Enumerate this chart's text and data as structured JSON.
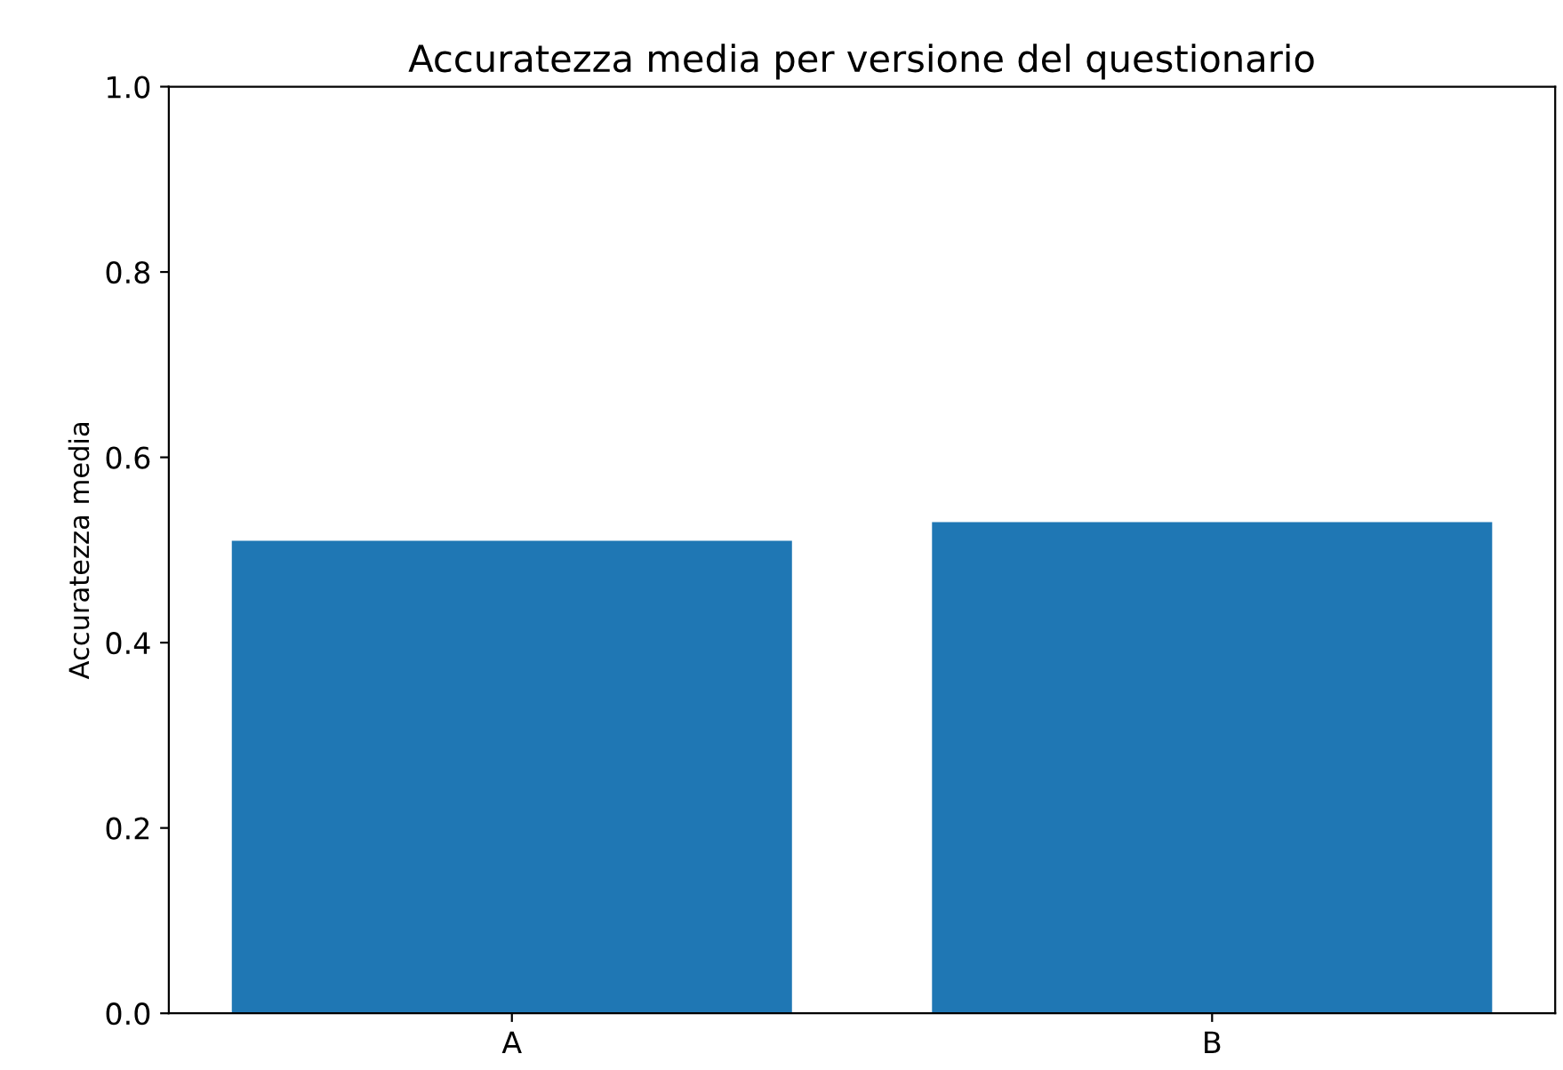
{
  "chart_data": {
    "type": "bar",
    "title": "Accuratezza media per versione del questionario",
    "ylabel": "Accuratezza media",
    "categories": [
      "A",
      "B"
    ],
    "values": [
      0.51,
      0.53
    ],
    "color": "#1f77b4",
    "ylim": [
      0,
      1.0
    ],
    "yticks": [
      {
        "value": 0,
        "label": "0.0"
      },
      {
        "value": 0.2,
        "label": "0.2"
      },
      {
        "value": 0.4,
        "label": "0.4"
      },
      {
        "value": 0.6,
        "label": "0.6"
      },
      {
        "value": 0.8,
        "label": "0.8"
      },
      {
        "value": 1.0,
        "label": "1.0"
      }
    ],
    "grid": false
  }
}
